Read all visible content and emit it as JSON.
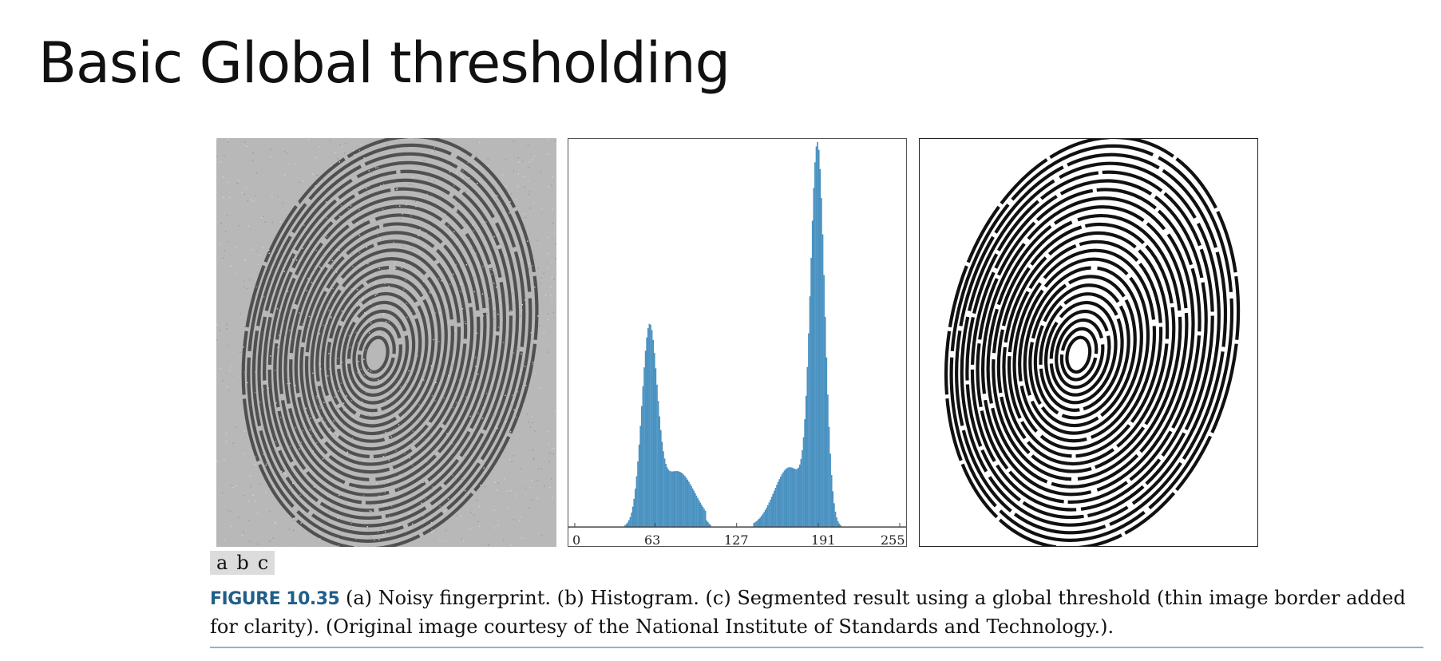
{
  "slide": {
    "title": "Basic Global thresholding"
  },
  "figure": {
    "panels": [
      {
        "tag": "a",
        "description_name": "noisy-fingerprint"
      },
      {
        "tag": "b",
        "description_name": "histogram"
      },
      {
        "tag": "c",
        "description_name": "segmented-fingerprint"
      }
    ],
    "panel_tags": [
      "a",
      "b",
      "c"
    ],
    "caption_label": "FIGURE 10.35",
    "caption_text": " (a) Noisy fingerprint. (b) Histogram. (c) Segmented result using a global threshold (thin image border added for clarity). (Original image courtesy of the National Institute of Standards and Technology.)."
  },
  "histogram": {
    "tick_labels": [
      "0",
      "63",
      "127",
      "191",
      "255"
    ],
    "bar_color": "#4a92c1",
    "xlim": [
      0,
      255
    ]
  },
  "colors": {
    "noisy_background": "#b8b8b8",
    "ridge_gray": "#505050",
    "ridge_black": "#111111",
    "caption_label": "#1f5f8a"
  }
}
